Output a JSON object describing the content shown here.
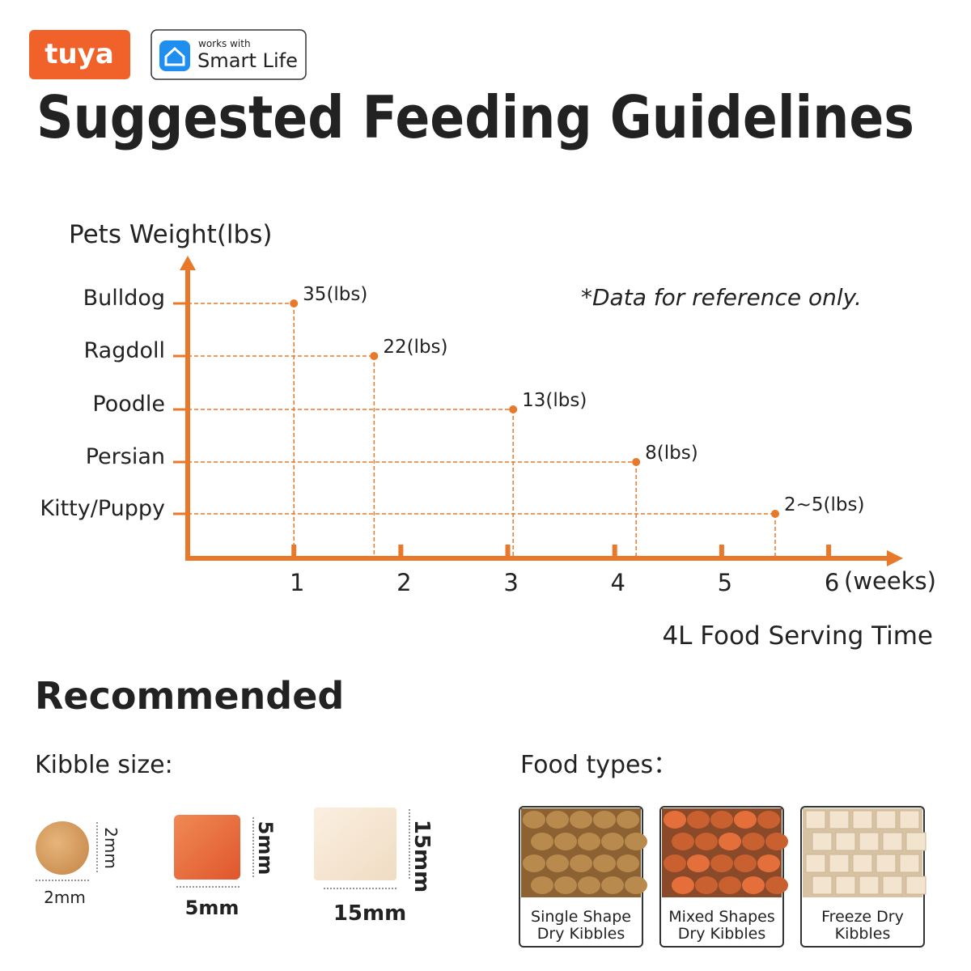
{
  "header": {
    "brand": "tuya",
    "badge_small": "works with",
    "badge_main": "Smart Life"
  },
  "title": "Suggested Feeding Guidelines",
  "chart_data": {
    "type": "scatter",
    "y_label": "Pets Weight(lbs)",
    "x_label": "4L Food Serving Time",
    "x_unit": "(weeks)",
    "note": "*Data for reference only.",
    "categories": [
      "Bulldog",
      "Ragdoll",
      "Poodle",
      "Persian",
      "Kitty/Puppy"
    ],
    "values": [
      1.0,
      1.75,
      3.05,
      4.2,
      5.5
    ],
    "point_labels": [
      "35(lbs)",
      "22(lbs)",
      "13(lbs)",
      "8(lbs)",
      "2~5(lbs)"
    ],
    "xlim": [
      0,
      6.65
    ],
    "xticks": [
      1,
      2,
      3,
      4,
      5,
      6
    ],
    "color": "#e8782a"
  },
  "recommended": {
    "heading": "Recommended",
    "kibble_label": "Kibble size:",
    "kibble_sizes": [
      {
        "width": "2mm",
        "height": "2mm"
      },
      {
        "width": "5mm",
        "height": "5mm"
      },
      {
        "width": "15mm",
        "height": "15mm"
      }
    ],
    "food_label": "Food types：",
    "food_types": [
      [
        "Single Shape",
        "Dry Kibbles"
      ],
      [
        "Mixed Shapes",
        "Dry Kibbles"
      ],
      [
        "Freeze Dry",
        "Kibbles"
      ]
    ]
  }
}
